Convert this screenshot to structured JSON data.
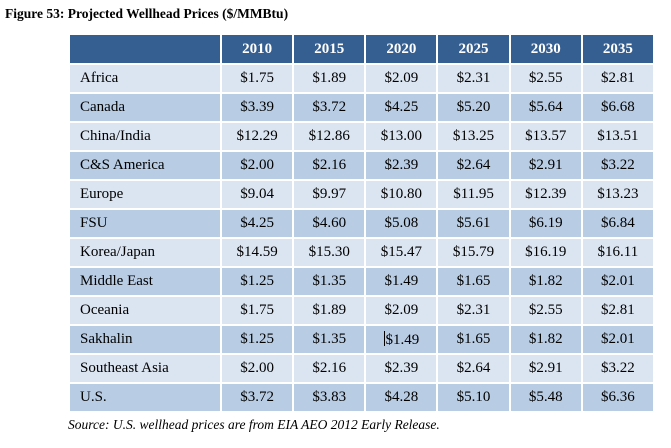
{
  "page": {
    "title": "Figure 53: Projected Wellhead Prices ($/MMBtu)",
    "source_note": "Source: U.S. wellhead prices are from EIA AEO 2012 Early Release."
  },
  "colors": {
    "header_bg": "#365F91",
    "header_text": "#FFFFFF",
    "row_light": "#DBE5F1",
    "row_dark": "#B8CCE4",
    "body_text": "#000000"
  },
  "table": {
    "columns": [
      "2010",
      "2015",
      "2020",
      "2025",
      "2030",
      "2035"
    ],
    "rows": [
      {
        "label": "Africa",
        "values": [
          "$1.75",
          "$1.89",
          "$2.09",
          "$2.31",
          "$2.55",
          "$2.81"
        ]
      },
      {
        "label": "Canada",
        "values": [
          "$3.39",
          "$3.72",
          "$4.25",
          "$5.20",
          "$5.64",
          "$6.68"
        ]
      },
      {
        "label": "China/India",
        "values": [
          "$12.29",
          "$12.86",
          "$13.00",
          "$13.25",
          "$13.57",
          "$13.51"
        ]
      },
      {
        "label": "C&S America",
        "values": [
          "$2.00",
          "$2.16",
          "$2.39",
          "$2.64",
          "$2.91",
          "$3.22"
        ]
      },
      {
        "label": "Europe",
        "values": [
          "$9.04",
          "$9.97",
          "$10.80",
          "$11.95",
          "$12.39",
          "$13.23"
        ]
      },
      {
        "label": "FSU",
        "values": [
          "$4.25",
          "$4.60",
          "$5.08",
          "$5.61",
          "$6.19",
          "$6.84"
        ]
      },
      {
        "label": "Korea/Japan",
        "values": [
          "$14.59",
          "$15.30",
          "$15.47",
          "$15.79",
          "$16.19",
          "$16.11"
        ]
      },
      {
        "label": "Middle East",
        "values": [
          "$1.25",
          "$1.35",
          "$1.49",
          "$1.65",
          "$1.82",
          "$2.01"
        ]
      },
      {
        "label": "Oceania",
        "values": [
          "$1.75",
          "$1.89",
          "$2.09",
          "$2.31",
          "$2.55",
          "$2.81"
        ]
      },
      {
        "label": "Sakhalin",
        "values": [
          "$1.25",
          "$1.35",
          "$1.49",
          "$1.65",
          "$1.82",
          "$2.01"
        ]
      },
      {
        "label": "Southeast Asia",
        "values": [
          "$2.00",
          "$2.16",
          "$2.39",
          "$2.64",
          "$2.91",
          "$3.22"
        ]
      },
      {
        "label": "U.S.",
        "values": [
          "$3.72",
          "$3.83",
          "$4.28",
          "$5.10",
          "$5.48",
          "$6.36"
        ]
      }
    ],
    "text_cursor": {
      "row_index": 9,
      "col_index": 2
    }
  }
}
